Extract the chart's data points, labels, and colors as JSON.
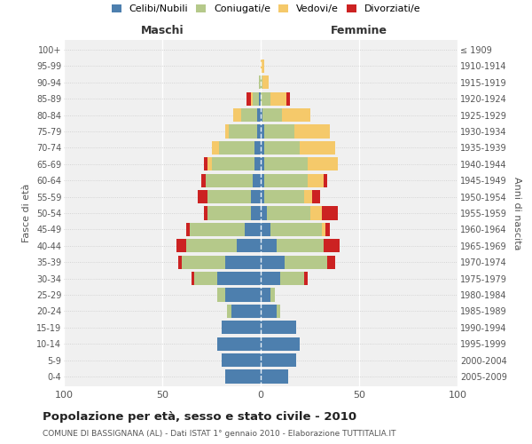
{
  "age_groups_top_to_bottom": [
    "100+",
    "95-99",
    "90-94",
    "85-89",
    "80-84",
    "75-79",
    "70-74",
    "65-69",
    "60-64",
    "55-59",
    "50-54",
    "45-49",
    "40-44",
    "35-39",
    "30-34",
    "25-29",
    "20-24",
    "15-19",
    "10-14",
    "5-9",
    "0-4"
  ],
  "birth_years_top_to_bottom": [
    "≤ 1909",
    "1910-1914",
    "1915-1919",
    "1920-1924",
    "1925-1929",
    "1930-1934",
    "1935-1939",
    "1940-1944",
    "1945-1949",
    "1950-1954",
    "1955-1959",
    "1960-1964",
    "1965-1969",
    "1970-1974",
    "1975-1979",
    "1980-1984",
    "1985-1989",
    "1990-1994",
    "1995-1999",
    "2000-2004",
    "2005-2009"
  ],
  "maschi_celibi": [
    0,
    0,
    0,
    1,
    2,
    2,
    3,
    3,
    4,
    5,
    5,
    8,
    12,
    18,
    22,
    18,
    15,
    20,
    22,
    20,
    18
  ],
  "maschi_coniugati": [
    0,
    0,
    1,
    3,
    8,
    14,
    18,
    22,
    24,
    22,
    22,
    28,
    26,
    22,
    12,
    4,
    2,
    0,
    0,
    0,
    0
  ],
  "maschi_vedovi": [
    0,
    0,
    0,
    1,
    4,
    2,
    4,
    2,
    0,
    0,
    0,
    0,
    0,
    0,
    0,
    0,
    0,
    0,
    0,
    0,
    0
  ],
  "maschi_divorziati": [
    0,
    0,
    0,
    2,
    0,
    0,
    0,
    2,
    2,
    5,
    2,
    2,
    5,
    2,
    1,
    0,
    0,
    0,
    0,
    0,
    0
  ],
  "femmine_nubili": [
    0,
    0,
    0,
    0,
    1,
    2,
    2,
    2,
    2,
    2,
    3,
    5,
    8,
    12,
    10,
    5,
    8,
    18,
    20,
    18,
    14
  ],
  "femmine_coniugate": [
    0,
    0,
    1,
    5,
    10,
    15,
    18,
    22,
    22,
    20,
    22,
    26,
    24,
    22,
    12,
    2,
    2,
    0,
    0,
    0,
    0
  ],
  "femmine_vedove": [
    0,
    2,
    3,
    8,
    14,
    18,
    18,
    15,
    8,
    4,
    6,
    2,
    0,
    0,
    0,
    0,
    0,
    0,
    0,
    0,
    0
  ],
  "femmine_divorziate": [
    0,
    0,
    0,
    2,
    0,
    0,
    0,
    0,
    2,
    4,
    8,
    2,
    8,
    4,
    2,
    0,
    0,
    0,
    0,
    0,
    0
  ],
  "colors": {
    "celibi_nubili": "#4d7fae",
    "coniugati": "#b5c98a",
    "vedovi": "#f5c96a",
    "divorziati": "#cc2222"
  },
  "title": "Popolazione per età, sesso e stato civile - 2010",
  "subtitle": "COMUNE DI BASSIGNANA (AL) - Dati ISTAT 1° gennaio 2010 - Elaborazione TUTTITALIA.IT",
  "ylabel_left": "Fasce di età",
  "ylabel_right": "Anni di nascita",
  "xlabel_left": "Maschi",
  "xlabel_right": "Femmine",
  "xlim": 100,
  "background_color": "#ffffff",
  "plot_bg_color": "#f0f0f0"
}
